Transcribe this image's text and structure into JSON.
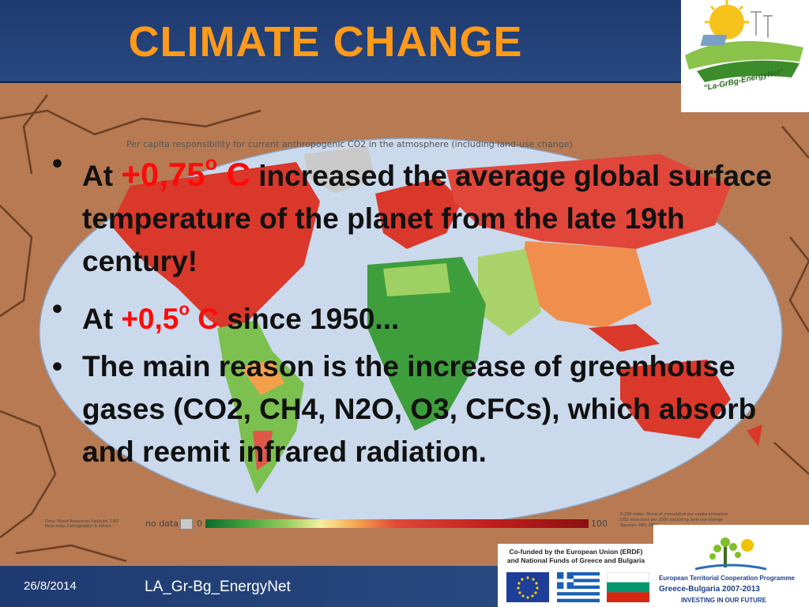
{
  "slide": {
    "title": "CLIMATE CHANGE",
    "bullets": [
      {
        "pre": "At ",
        "highlight": "+0,75",
        "deg": "o",
        "unit": " C",
        "post": " increased the average global surface temperature of the planet from the late 19th century!"
      },
      {
        "pre": "At ",
        "highlight": "+0,5",
        "deg": "o",
        "unit": " C",
        "post": " since 1950..."
      },
      {
        "text": "The main reason is the increase of greenhouse gases (CO2, CH4, N2O, O3, CFCs), which absorb and reemit infrared radiation."
      }
    ]
  },
  "map": {
    "caption": "Per capita responsibility for current anthropogenic CO2 in the atmosphere (including land-use change)",
    "legend": {
      "no_data": "no data",
      "min": "0",
      "max": "100"
    },
    "source_left": [
      "Data: World Resources Institute, CAIT",
      "Base map: Cartography: & others"
    ],
    "source_right": [
      "0-100 index: Share of cumulative per capita emissions",
      "CO2 emissions per 2000 excluding land-use change",
      "Sources: WRI, WBG"
    ]
  },
  "logo": {
    "text": "\"La-GrBg-EnergyNet\""
  },
  "footer": {
    "date": "26/8/2014",
    "name": "LA_Gr-Bg_EnergyNet",
    "eu_text": "Co-funded by the European Union (ERDF) and National Funds of Greece and Bulgaria",
    "program_line1": "European Territorial Cooperation Programme",
    "program_line2": "Greece-Bulgaria 2007-2013",
    "program_line3": "INVESTING IN OUR FUTURE"
  },
  "colors": {
    "title": "#ff9a1a",
    "highlight": "#ff0a0a",
    "header": "#1f3a70"
  }
}
